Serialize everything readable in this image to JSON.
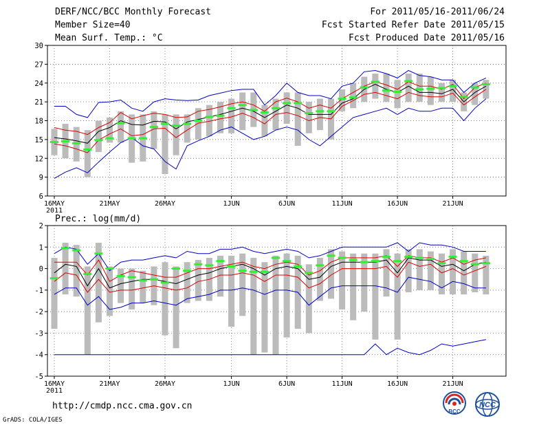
{
  "header": {
    "title": "DERF/NCC/BCC Monthly Forecast",
    "member_size": "Member Size=40",
    "variable": "Mean Surf. Temp.: °C",
    "fcst_period": "For 2011/05/16-2011/06/24",
    "started_refer": "Fcst Started Refer Date 2011/05/15",
    "produced": "Fcst Produced Date 2011/05/16"
  },
  "footer": {
    "url": "http://cmdp.ncc.cma.gov.cn",
    "grads": "GrADS: COLA/IGES",
    "logo_bcc": "BCC",
    "logo_ncc": "NCC"
  },
  "colors": {
    "spread": "#bbbbbb",
    "median": "#000000",
    "quartile": "#dd0000",
    "extreme": "#0000cc",
    "observed": "#33ee33",
    "grid": "#555555"
  },
  "chart_data": [
    {
      "type": "line",
      "title": "Mean Surf. Temp.: °C",
      "ylim": [
        6,
        30
      ],
      "yticks": [
        6,
        9,
        12,
        15,
        18,
        21,
        24,
        27,
        30
      ],
      "xlabels": [
        {
          "day": 0,
          "label": "16MAY"
        },
        {
          "day": 5,
          "label": "21MAY"
        },
        {
          "day": 10,
          "label": "26MAY"
        },
        {
          "day": 16,
          "label": "1JUN"
        },
        {
          "day": 21,
          "label": "6JUN"
        },
        {
          "day": 26,
          "label": "11JUN"
        },
        {
          "day": 31,
          "label": "16JUN"
        },
        {
          "day": 36,
          "label": "21JUN"
        }
      ],
      "year_label": "2011",
      "series": [
        {
          "name": "max",
          "values": [
            8.8,
            9.8,
            10.5,
            9.7,
            11.4,
            13.0,
            14.5,
            15.3,
            14.0,
            13.5,
            11.5,
            10.3,
            14.0,
            14.8,
            15.5,
            16.5,
            17.0,
            16.0,
            15.0,
            15.5,
            16.5,
            17.0,
            16.5,
            15.0,
            14.0,
            15.5,
            17.0,
            18.5,
            19.0,
            19.5,
            20.0,
            19.0,
            20.0,
            19.5,
            19.5,
            20.0,
            20.0,
            18.0,
            20.0,
            21.5
          ]
        },
        {
          "name": "upper",
          "values": [
            16.9,
            16.5,
            16.3,
            15.8,
            16.9,
            17.7,
            19.3,
            18.3,
            18.8,
            19.2,
            19.0,
            18.5,
            18.6,
            19.5,
            19.8,
            20.2,
            20.7,
            21.0,
            20.5,
            19.5,
            21.0,
            21.6,
            21.0,
            20.0,
            20.5,
            20.0,
            21.5,
            22.5,
            23.5,
            24.2,
            23.7,
            23.0,
            24.2,
            23.5,
            23.5,
            23.0,
            23.8,
            21.5,
            23.3,
            24.0
          ]
        },
        {
          "name": "median",
          "values": [
            15.3,
            15.1,
            14.8,
            14.4,
            16.3,
            16.9,
            18.0,
            17.4,
            17.3,
            17.9,
            17.8,
            16.7,
            17.8,
            18.2,
            18.6,
            19.0,
            19.5,
            20.0,
            19.5,
            18.5,
            19.5,
            20.5,
            20.0,
            19.0,
            19.0,
            19.0,
            20.8,
            21.5,
            23.0,
            23.8,
            23.0,
            22.5,
            23.5,
            22.5,
            22.5,
            22.3,
            23.0,
            21.0,
            22.5,
            23.5
          ]
        },
        {
          "name": "lower",
          "values": [
            14.3,
            14.0,
            13.5,
            12.9,
            14.9,
            15.9,
            16.7,
            15.6,
            15.8,
            16.7,
            16.8,
            15.3,
            16.5,
            17.6,
            17.9,
            18.3,
            18.6,
            19.2,
            18.5,
            17.5,
            19.0,
            19.3,
            18.8,
            18.0,
            18.5,
            18.3,
            20.3,
            21.2,
            22.2,
            22.5,
            22.0,
            21.5,
            22.5,
            22.0,
            21.8,
            21.8,
            22.4,
            20.5,
            21.8,
            23.0
          ]
        },
        {
          "name": "min",
          "values": [
            20.3,
            20.3,
            19.0,
            18.5,
            20.9,
            21.0,
            21.3,
            20.0,
            19.5,
            21.0,
            21.5,
            21.3,
            21.2,
            21.3,
            22.0,
            22.4,
            22.8,
            23.0,
            23.0,
            20.5,
            22.0,
            24.0,
            22.5,
            22.0,
            22.0,
            21.5,
            23.5,
            24.0,
            25.8,
            26.0,
            25.5,
            24.8,
            26.0,
            25.2,
            25.0,
            24.5,
            24.5,
            22.5,
            24.0,
            24.8
          ]
        },
        {
          "name": "observed",
          "values": [
            14.6,
            14.7,
            14.4,
            13.4,
            14.9,
            15.2,
            17.6,
            15.2,
            15.2,
            17.0,
            17.5,
            17.2,
            17.5,
            18.0,
            18.6,
            18.8,
            20.0,
            20.5,
            19.7,
            19.3,
            20.0,
            20.8,
            20.8,
            19.2,
            19.5,
            19.5,
            21.5,
            21.7,
            23.3,
            24.2,
            22.8,
            22.6,
            24.3,
            23.0,
            23.1,
            23.2,
            23.5,
            21.8,
            23.3,
            23.8
          ]
        },
        {
          "name": "spread_top",
          "values": [
            16.7,
            17.5,
            17.0,
            16.5,
            18.0,
            18.5,
            19.5,
            19.0,
            19.0,
            19.5,
            19.0,
            19.0,
            19.0,
            20.0,
            20.5,
            21.0,
            21.5,
            22.5,
            22.5,
            20.5,
            21.5,
            22.5,
            22.5,
            21.0,
            21.5,
            21.5,
            23.0,
            24.0,
            25.0,
            25.5,
            25.5,
            24.5,
            25.5,
            25.5,
            25.0,
            24.0,
            24.5,
            22.5,
            24.0,
            24.5
          ]
        },
        {
          "name": "spread_bottom",
          "values": [
            12.5,
            12.0,
            11.5,
            9.0,
            13.0,
            14.5,
            14.5,
            11.3,
            11.5,
            13.5,
            9.5,
            12.5,
            14.5,
            15.0,
            15.5,
            16.0,
            16.0,
            16.5,
            17.0,
            15.5,
            16.5,
            17.5,
            14.0,
            16.0,
            16.5,
            15.0,
            19.5,
            20.0,
            21.0,
            21.5,
            21.0,
            20.0,
            21.0,
            21.0,
            20.5,
            21.0,
            21.0,
            19.5,
            20.5,
            21.5
          ]
        }
      ]
    },
    {
      "type": "line",
      "title": "Prec.: log(mm/d)",
      "ylim": [
        -5,
        2
      ],
      "yticks": [
        -5,
        -4,
        -3,
        -2,
        -1,
        0,
        1,
        2
      ],
      "xlabels": [
        {
          "day": 0,
          "label": "16MAY"
        },
        {
          "day": 5,
          "label": "21MAY"
        },
        {
          "day": 10,
          "label": "26MAY"
        },
        {
          "day": 16,
          "label": "1JUN"
        },
        {
          "day": 21,
          "label": "6JUN"
        },
        {
          "day": 26,
          "label": "11JUN"
        },
        {
          "day": 31,
          "label": "16JUN"
        },
        {
          "day": 36,
          "label": "21JUN"
        }
      ],
      "year_label": "2011",
      "series": [
        {
          "name": "max",
          "values": [
            0.7,
            1.0,
            0.9,
            0.2,
            0.7,
            -0.1,
            0.3,
            0.4,
            0.4,
            0.5,
            0.6,
            0.5,
            0.8,
            0.7,
            0.7,
            0.9,
            0.9,
            1.0,
            0.8,
            0.7,
            0.8,
            0.9,
            0.8,
            0.5,
            0.6,
            0.8,
            1.0,
            1.0,
            1.0,
            1.0,
            1.0,
            1.2,
            0.8,
            1.2,
            1.1,
            1.1,
            1.0,
            0.8,
            0.8,
            0.8
          ]
        },
        {
          "name": "upper",
          "values": [
            0.3,
            0.3,
            0.3,
            -0.3,
            0.4,
            -0.6,
            -0.3,
            -0.1,
            -0.2,
            -0.3,
            -0.4,
            -0.4,
            -0.2,
            0.0,
            0.0,
            0.1,
            0.2,
            0.3,
            0.1,
            0.0,
            0.2,
            0.3,
            0.2,
            -0.3,
            -0.1,
            0.3,
            0.5,
            0.5,
            0.5,
            0.5,
            0.6,
            0.1,
            0.6,
            0.5,
            0.5,
            0.3,
            0.5,
            0.2,
            0.4,
            0.5
          ]
        },
        {
          "name": "median",
          "values": [
            -0.2,
            0.2,
            0.1,
            -0.8,
            0.0,
            -0.9,
            -0.7,
            -0.6,
            -0.5,
            -0.5,
            -0.6,
            -0.7,
            -0.5,
            -0.3,
            -0.2,
            0.0,
            0.1,
            0.2,
            0.0,
            -0.3,
            0.0,
            0.1,
            0.0,
            -0.5,
            -0.4,
            0.1,
            0.3,
            0.3,
            0.3,
            0.3,
            0.4,
            -0.2,
            0.5,
            0.4,
            0.4,
            0.1,
            0.2,
            -0.1,
            0.2,
            0.3
          ]
        },
        {
          "name": "lower",
          "values": [
            -0.6,
            -0.2,
            -0.3,
            -1.1,
            -0.5,
            -1.1,
            -1.0,
            -1.0,
            -0.9,
            -0.8,
            -0.9,
            -1.0,
            -0.9,
            -0.6,
            -0.5,
            -0.3,
            -0.3,
            -0.2,
            -0.3,
            -0.6,
            -0.3,
            -0.3,
            -0.4,
            -0.9,
            -0.7,
            -0.3,
            0.0,
            0.0,
            0.0,
            0.0,
            0.1,
            -0.4,
            0.3,
            0.1,
            0.2,
            -0.2,
            0.0,
            -0.3,
            -0.1,
            0.1
          ]
        },
        {
          "name": "min",
          "values": [
            -1.2,
            -0.9,
            -0.9,
            -1.7,
            -1.3,
            -1.9,
            -1.8,
            -1.6,
            -1.6,
            -1.5,
            -1.6,
            -1.7,
            -1.4,
            -1.3,
            -1.2,
            -1.0,
            -1.0,
            -0.9,
            -1.0,
            -1.2,
            -1.0,
            -1.0,
            -1.1,
            -1.7,
            -1.3,
            -0.9,
            -0.8,
            -0.8,
            -0.8,
            -0.8,
            -0.9,
            -1.1,
            -0.4,
            -0.5,
            -0.6,
            -0.9,
            -0.6,
            -0.7,
            -0.9,
            -0.9
          ]
        },
        {
          "name": "floor",
          "values": [
            -4.0,
            -4.0,
            -4.0,
            -4.0,
            -4.0,
            -4.0,
            -4.0,
            -4.0,
            -4.0,
            -4.0,
            -4.0,
            -4.0,
            -4.0,
            -4.0,
            -4.0,
            -4.0,
            -4.0,
            -4.0,
            -4.0,
            -4.0,
            -4.0,
            -4.0,
            -4.0,
            -4.0,
            -4.0,
            -4.0,
            -4.0,
            -4.0,
            -4.0,
            -3.5,
            -4.0,
            -3.7,
            -3.9,
            -4.0,
            -3.8,
            -3.5,
            -3.6,
            -3.5,
            -3.4,
            -3.3
          ]
        },
        {
          "name": "observed",
          "values": [
            -0.45,
            0.95,
            0.85,
            -0.25,
            0.7,
            0.0,
            -0.35,
            -0.4,
            -0.55,
            -0.5,
            -0.65,
            0.0,
            -0.1,
            0.2,
            0.15,
            0.35,
            0.1,
            -0.1,
            -0.15,
            -0.15,
            0.5,
            0.35,
            0.1,
            -0.2,
            0.15,
            0.6,
            0.5,
            0.4,
            0.3,
            0.35,
            0.55,
            0.35,
            0.55,
            0.5,
            0.45,
            0.25,
            0.55,
            0.35,
            0.2,
            0.25
          ]
        },
        {
          "name": "spread_top",
          "values": [
            0.5,
            1.2,
            1.1,
            0.1,
            1.2,
            0.1,
            0.0,
            0.0,
            -0.1,
            0.1,
            0.3,
            0.1,
            0.3,
            0.4,
            0.5,
            0.6,
            0.6,
            0.7,
            0.5,
            0.3,
            0.6,
            0.7,
            0.6,
            0.2,
            0.5,
            0.9,
            0.8,
            0.7,
            0.7,
            0.7,
            0.9,
            0.7,
            0.9,
            0.9,
            0.8,
            0.7,
            0.9,
            0.8,
            0.7,
            0.6
          ]
        },
        {
          "name": "spread_bottom",
          "values": [
            -2.8,
            -1.2,
            -1.3,
            -4.0,
            -2.5,
            -2.2,
            -1.6,
            -1.9,
            -1.6,
            -1.7,
            -3.1,
            -3.7,
            -1.6,
            -1.5,
            -1.5,
            -1.3,
            -2.7,
            -2.2,
            -4.0,
            -3.9,
            -4.0,
            -3.2,
            -2.8,
            -3.0,
            -1.5,
            -1.4,
            -1.9,
            -2.4,
            -2.0,
            -3.3,
            -1.3,
            -3.3,
            -1.1,
            -1.0,
            -1.0,
            -1.2,
            -1.2,
            -1.2,
            -1.1,
            -1.2
          ]
        }
      ]
    }
  ]
}
